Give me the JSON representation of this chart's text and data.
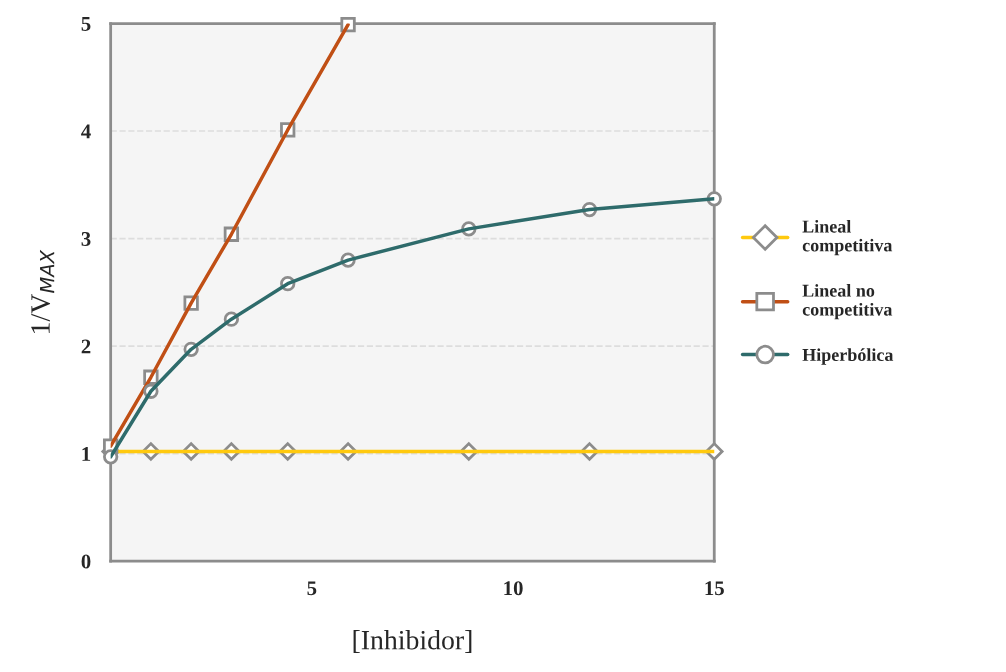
{
  "chart_data": {
    "type": "line",
    "xlabel": "[Inhibidor]",
    "ylabel": "1/V$_{MAX}$",
    "xlim": [
      0,
      15
    ],
    "xticks": [
      5,
      10,
      15
    ],
    "ylim": [
      0,
      5
    ],
    "yticks": [
      0,
      1,
      2,
      3,
      4,
      5
    ],
    "grid": "y",
    "legend": "right",
    "series": [
      {
        "name": "Lineal competitiva",
        "color": "#ffc90e",
        "marker": "diamond",
        "x": [
          0,
          1,
          2,
          3,
          4.4,
          5.9,
          8.9,
          11.9,
          15
        ],
        "values": [
          1.02,
          1.02,
          1.02,
          1.02,
          1.02,
          1.02,
          1.02,
          1.02,
          1.02
        ]
      },
      {
        "name": "Lineal no competitiva",
        "color": "#c04f15",
        "marker": "square",
        "x": [
          0,
          1,
          2,
          3,
          4.4,
          5.9
        ],
        "values": [
          1.07,
          1.71,
          2.4,
          3.04,
          4.01,
          4.99
        ]
      },
      {
        "name": "Hiperbólica",
        "color": "#2e6b6b",
        "marker": "circle",
        "x": [
          0,
          1,
          2,
          3,
          4.4,
          5.9,
          8.9,
          11.9,
          15
        ],
        "values": [
          0.97,
          1.58,
          1.97,
          2.25,
          2.58,
          2.8,
          3.09,
          3.27,
          3.37
        ]
      }
    ]
  }
}
